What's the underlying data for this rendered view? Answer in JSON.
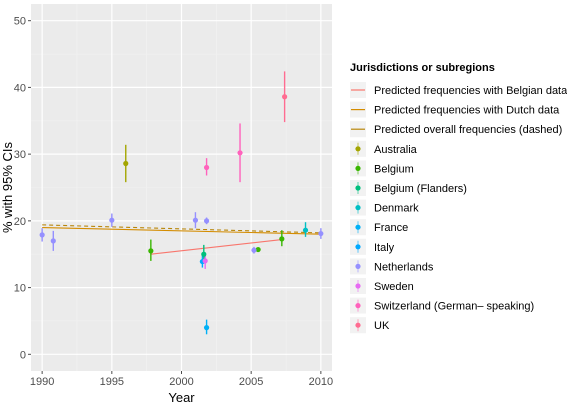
{
  "chart_data": {
    "type": "scatter",
    "xlabel": "Year",
    "ylabel": "% with 95% CIs",
    "xlim": [
      1989.2,
      2010.8
    ],
    "ylim": [
      -2.5,
      52.5
    ],
    "x_ticks": [
      1990,
      1995,
      2000,
      2005,
      2010
    ],
    "y_ticks": [
      0,
      10,
      20,
      30,
      40,
      50
    ],
    "grid": true,
    "legend_placement": "right",
    "legend_title": "Jurisdictions or subregions",
    "lines": [
      {
        "name": "Predicted frequencies with Belgian data",
        "color": "#f8766d",
        "dashed": false,
        "x": [
          1997.8,
          2007.2
        ],
        "y": [
          15.0,
          17.2
        ]
      },
      {
        "name": "Predicted frequencies with Dutch data",
        "color": "#d48c00",
        "dashed": false,
        "x": [
          1990.0,
          2010.0
        ],
        "y": [
          19.0,
          18.0
        ]
      },
      {
        "name": "Predicted overall frequencies (dashed)",
        "color": "#b8860b",
        "dashed": true,
        "x": [
          1990.0,
          2010.0
        ],
        "y": [
          19.4,
          18.2
        ]
      }
    ],
    "series": [
      {
        "name": "Australia",
        "color": "#a3a500",
        "points": [
          {
            "x": 1996.0,
            "y": 28.6,
            "lo": 25.8,
            "hi": 31.4
          }
        ]
      },
      {
        "name": "Belgium",
        "color": "#39b600",
        "points": [
          {
            "x": 1997.8,
            "y": 15.5,
            "lo": 14.0,
            "hi": 17.2
          },
          {
            "x": 2005.5,
            "y": 15.7,
            "lo": 15.4,
            "hi": 16.0
          },
          {
            "x": 2007.2,
            "y": 17.3,
            "lo": 16.2,
            "hi": 18.6
          }
        ]
      },
      {
        "name": "Belgium (Flanders)",
        "color": "#00bf7d",
        "points": [
          {
            "x": 2001.6,
            "y": 15.0,
            "lo": 13.6,
            "hi": 16.4
          }
        ]
      },
      {
        "name": "Denmark",
        "color": "#00bfc4",
        "points": [
          {
            "x": 2008.9,
            "y": 18.6,
            "lo": 17.6,
            "hi": 19.8
          }
        ]
      },
      {
        "name": "France",
        "color": "#00b0f6",
        "points": [
          {
            "x": 2001.8,
            "y": 4.0,
            "lo": 3.0,
            "hi": 5.2
          }
        ]
      },
      {
        "name": "Italy",
        "color": "#00a9ff",
        "points": [
          {
            "x": 2001.5,
            "y": 13.9,
            "lo": 13.0,
            "hi": 14.8
          }
        ]
      },
      {
        "name": "Netherlands",
        "color": "#9590ff",
        "points": [
          {
            "x": 1990.0,
            "y": 17.9,
            "lo": 16.9,
            "hi": 18.9
          },
          {
            "x": 1990.8,
            "y": 17.0,
            "lo": 15.5,
            "hi": 18.5
          },
          {
            "x": 1995.0,
            "y": 20.1,
            "lo": 19.1,
            "hi": 21.1
          },
          {
            "x": 2001.0,
            "y": 20.1,
            "lo": 18.9,
            "hi": 21.3
          },
          {
            "x": 2001.8,
            "y": 20.0,
            "lo": 19.5,
            "hi": 20.5
          },
          {
            "x": 2005.2,
            "y": 15.6,
            "lo": 15.1,
            "hi": 16.1
          },
          {
            "x": 2010.0,
            "y": 18.1,
            "lo": 17.3,
            "hi": 18.9
          }
        ]
      },
      {
        "name": "Sweden",
        "color": "#e76bf3",
        "points": [
          {
            "x": 2001.7,
            "y": 14.0,
            "lo": 12.8,
            "hi": 15.2
          }
        ]
      },
      {
        "name": "Switzerland (German– speaking)",
        "color": "#ff62bc",
        "points": [
          {
            "x": 2001.8,
            "y": 28.0,
            "lo": 26.8,
            "hi": 29.4
          },
          {
            "x": 2004.2,
            "y": 30.2,
            "lo": 25.8,
            "hi": 34.6
          }
        ]
      },
      {
        "name": "UK",
        "color": "#ff6c91",
        "points": [
          {
            "x": 2007.4,
            "y": 38.6,
            "lo": 34.8,
            "hi": 42.4
          }
        ]
      }
    ]
  }
}
